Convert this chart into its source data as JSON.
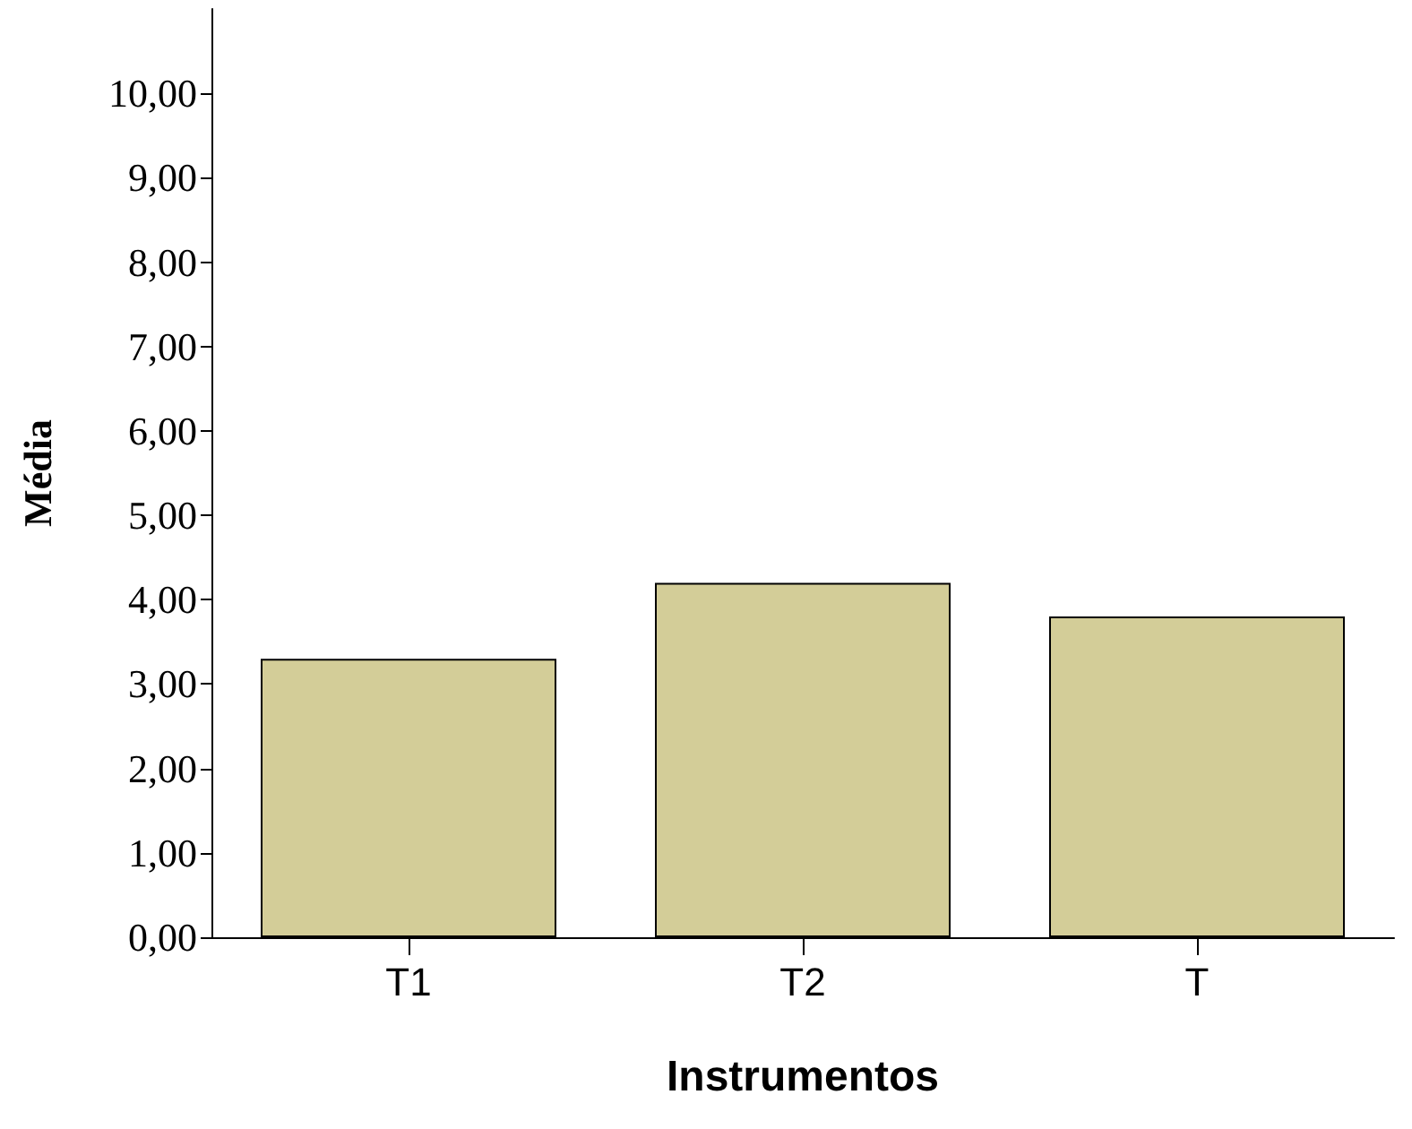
{
  "chart_data": {
    "type": "bar",
    "xlabel": "Instrumentos",
    "ylabel": "Média",
    "categories": [
      "T1",
      "T2",
      "T"
    ],
    "values": [
      3.3,
      4.2,
      3.8
    ],
    "color": "#d3cd98",
    "ylim": [
      0,
      11
    ],
    "yticks": [
      {
        "value": 0,
        "label": "0,00"
      },
      {
        "value": 1,
        "label": "1,00"
      },
      {
        "value": 2,
        "label": "2,00"
      },
      {
        "value": 3,
        "label": "3,00"
      },
      {
        "value": 4,
        "label": "4,00"
      },
      {
        "value": 5,
        "label": "5,00"
      },
      {
        "value": 6,
        "label": "6,00"
      },
      {
        "value": 7,
        "label": "7,00"
      },
      {
        "value": 8,
        "label": "8,00"
      },
      {
        "value": 9,
        "label": "9,00"
      },
      {
        "value": 10,
        "label": "10,00"
      }
    ],
    "grid": false
  }
}
